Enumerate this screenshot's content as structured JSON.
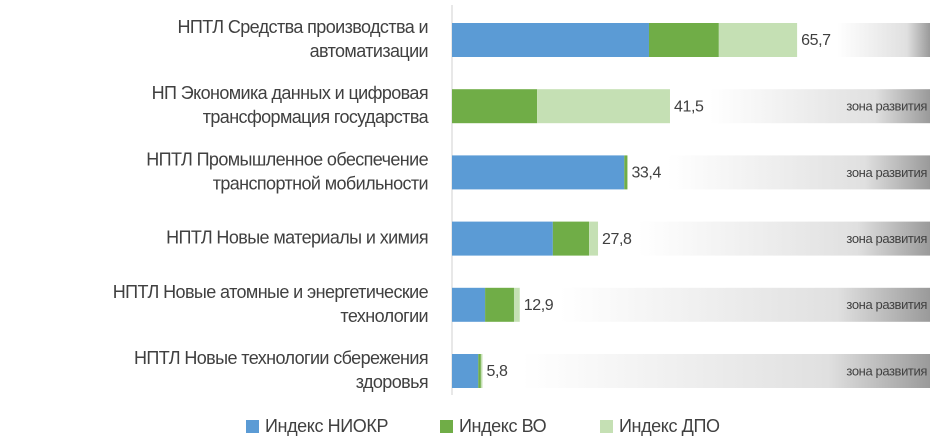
{
  "chart_data": {
    "type": "stacked-barh",
    "categories": [
      "НПТЛ Средства производства и\nавтоматизации",
      "НП Экономика данных и цифровая\nтрансформация государства",
      "НПТЛ Промышленное обеспечение\nтранспортной мобильности",
      "НПТЛ Новые материалы и химия",
      "НПТЛ Новые атомные и энергетические\nтехнологии",
      "НПТЛ Новые технологии сбережения\nздоровья"
    ],
    "series": [
      {
        "name": "Индекс НИОКР",
        "color": "#5b9bd5",
        "values": [
          37.5,
          0,
          32.8,
          19.2,
          6.3,
          5.0
        ]
      },
      {
        "name": "Индекс ВО",
        "color": "#70ad47",
        "values": [
          13.3,
          16.2,
          0.6,
          6.9,
          5.5,
          0.5
        ]
      },
      {
        "name": "Индекс ДПО",
        "color": "#c5e0b4",
        "values": [
          14.9,
          25.3,
          0,
          1.7,
          1.1,
          0.3
        ]
      }
    ],
    "totals": [
      65.7,
      41.5,
      33.4,
      27.8,
      12.9,
      5.8
    ],
    "total_labels": [
      "65,7",
      "41,5",
      "33,4",
      "27,8",
      "12,9",
      "5,8"
    ],
    "zone_labels": [
      null,
      "зона развития",
      "зона развития",
      "зона развития",
      "зона развития",
      "зона развития"
    ],
    "xlim": [
      0,
      91
    ],
    "legend": "bottom"
  }
}
